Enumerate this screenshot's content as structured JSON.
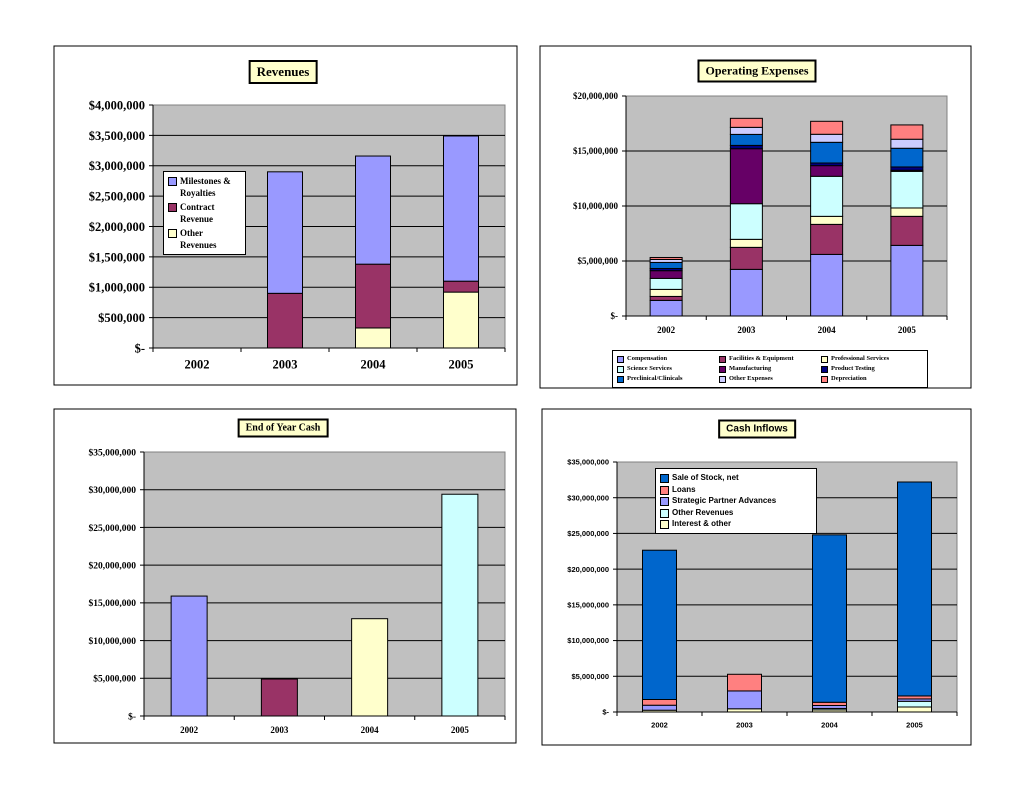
{
  "chart_data": [
    {
      "type": "bar",
      "stacked": true,
      "title": "Revenues",
      "categories": [
        "2002",
        "2003",
        "2004",
        "2005"
      ],
      "yticks": [
        "$-",
        "$500,000",
        "$1,000,000",
        "$1,500,000",
        "$2,000,000",
        "$2,500,000",
        "$3,000,000",
        "$3,500,000",
        "$4,000,000"
      ],
      "ylim": [
        0,
        4000000
      ],
      "grid": true,
      "legend_position": "left-inside",
      "series": [
        {
          "name": "Other Revenues",
          "color": "#ffffcc",
          "values": [
            0,
            0,
            330000,
            920000
          ]
        },
        {
          "name": "Contract Revenue",
          "color": "#993366",
          "values": [
            0,
            900000,
            1050000,
            180000
          ]
        },
        {
          "name": "Milestones & Royalties",
          "color": "#9999ff",
          "values": [
            0,
            2000000,
            1780000,
            2390000
          ]
        }
      ],
      "legend_order": [
        "Milestones & Royalties",
        "Contract Revenue",
        "Other Revenues"
      ]
    },
    {
      "type": "bar",
      "stacked": true,
      "title": "Operating Expenses",
      "categories": [
        "2002",
        "2003",
        "2004",
        "2005"
      ],
      "yticks": [
        "$-",
        "$5,000,000",
        "$10,000,000",
        "$15,000,000",
        "$20,000,000"
      ],
      "ylim": [
        0,
        20000000
      ],
      "grid": true,
      "legend_position": "bottom",
      "series": [
        {
          "name": "Compensation",
          "color": "#9999ff",
          "values": [
            1420000,
            4240000,
            5600000,
            6420000
          ]
        },
        {
          "name": "Facilities & Equipment",
          "color": "#993366",
          "values": [
            360000,
            2000000,
            2730000,
            2640000
          ]
        },
        {
          "name": "Professional Services",
          "color": "#ffffcc",
          "values": [
            640000,
            730000,
            730000,
            760000
          ]
        },
        {
          "name": "Science Services",
          "color": "#ccffff",
          "values": [
            1000000,
            3240000,
            3640000,
            3330000
          ]
        },
        {
          "name": "Manufacturing",
          "color": "#660066",
          "values": [
            700000,
            5000000,
            970000,
            100000
          ]
        },
        {
          "name": "Product Testing",
          "color": "#000080",
          "values": [
            200000,
            300000,
            240000,
            300000
          ]
        },
        {
          "name": "Preclinical/Clinicals",
          "color": "#0066cc",
          "values": [
            550000,
            1000000,
            1880000,
            1700000
          ]
        },
        {
          "name": "Other Expenses",
          "color": "#ccccff",
          "values": [
            270000,
            640000,
            730000,
            820000
          ]
        },
        {
          "name": "Depreciation",
          "color": "#ff8080",
          "values": [
            180000,
            820000,
            1180000,
            1300000
          ]
        }
      ],
      "legend_order": [
        "Compensation",
        "Facilities & Equipment",
        "Professional Services",
        "Science Services",
        "Manufacturing",
        "Product Testing",
        "Preclinical/Clinicals",
        "Other Expenses",
        "Depreciation"
      ]
    },
    {
      "type": "bar",
      "stacked": false,
      "title": "End of Year Cash",
      "categories": [
        "2002",
        "2003",
        "2004",
        "2005"
      ],
      "yticks": [
        "$-",
        "$5,000,000",
        "$10,000,000",
        "$15,000,000",
        "$20,000,000",
        "$25,000,000",
        "$30,000,000",
        "$35,000,000"
      ],
      "ylim": [
        0,
        35000000
      ],
      "grid": true,
      "values": [
        15900000,
        4900000,
        12900000,
        29400000
      ],
      "colors": [
        "#9999ff",
        "#993366",
        "#ffffcc",
        "#ccffff"
      ]
    },
    {
      "type": "bar",
      "stacked": true,
      "title": "Cash Inflows",
      "categories": [
        "2002",
        "2003",
        "2004",
        "2005"
      ],
      "yticks": [
        "$-",
        "$5,000,000",
        "$10,000,000",
        "$15,000,000",
        "$20,000,000",
        "$25,000,000",
        "$30,000,000",
        "$35,000,000"
      ],
      "ylim": [
        0,
        35000000
      ],
      "grid": true,
      "legend_position": "top-left-inside",
      "series": [
        {
          "name": "Interest & other",
          "color": "#ffffcc",
          "values": [
            250000,
            450000,
            300000,
            700000
          ]
        },
        {
          "name": "Other Revenues",
          "color": "#ccffff",
          "values": [
            0,
            0,
            200000,
            800000
          ]
        },
        {
          "name": "Strategic Partner Advances",
          "color": "#9999ff",
          "values": [
            700000,
            2500000,
            410000,
            330000
          ]
        },
        {
          "name": "Loans",
          "color": "#ff8080",
          "values": [
            800000,
            2330000,
            450000,
            420000
          ]
        },
        {
          "name": "Sale of Stock, net",
          "color": "#0066cc",
          "values": [
            20900000,
            0,
            23440000,
            29950000
          ]
        }
      ],
      "legend_order": [
        "Sale of Stock, net",
        "Loans",
        "Strategic Partner Advances",
        "Other Revenues",
        "Interest & other"
      ]
    }
  ]
}
